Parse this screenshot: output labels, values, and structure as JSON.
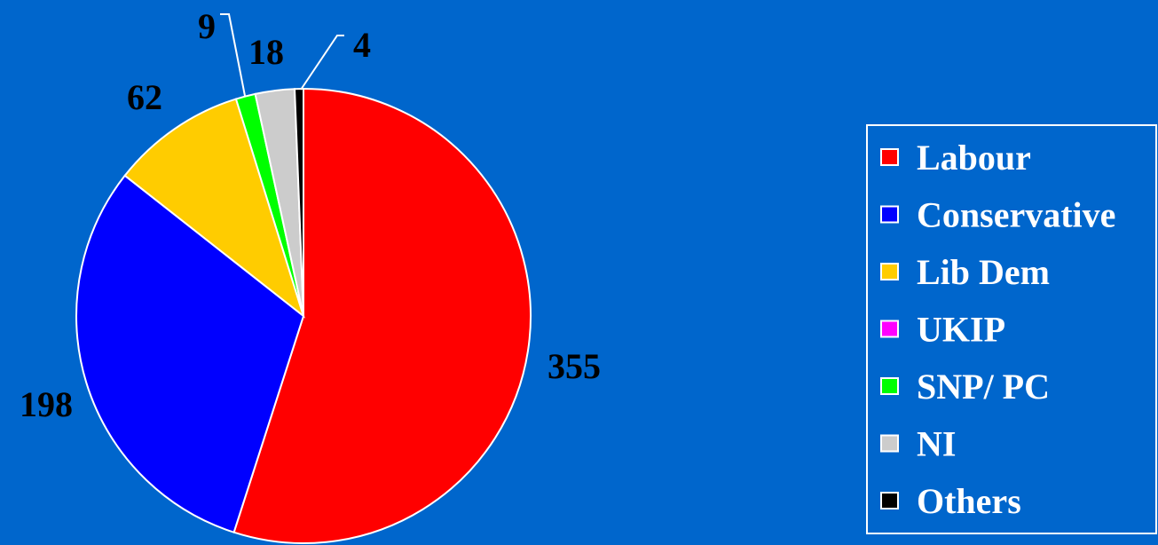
{
  "chart_data": {
    "type": "pie",
    "categories": [
      "Labour",
      "Conservative",
      "Lib Dem",
      "UKIP",
      "SNP/ PC",
      "NI",
      "Others"
    ],
    "values": [
      355,
      198,
      62,
      0,
      9,
      18,
      4
    ],
    "data_labels": [
      "355",
      "198",
      "62",
      "",
      "9",
      "18",
      "4"
    ],
    "title": "",
    "start_angle_deg": 0,
    "direction": "clockwise",
    "legend": {
      "position": "right",
      "entries": [
        "Labour",
        "Conservative",
        "Lib Dem",
        "UKIP",
        "SNP/ PC",
        "NI",
        "Others"
      ]
    }
  },
  "colors": {
    "background": "#0066CC",
    "slice_border": "#FFFFFF",
    "label_text": "#000000",
    "legend_text": "#FFFFFF",
    "legend_border": "#FFFFFF",
    "series": [
      "#FF0000",
      "#0000FF",
      "#FFCC00",
      "#FF00FF",
      "#00FF00",
      "#CCCCCC",
      "#000000"
    ]
  }
}
